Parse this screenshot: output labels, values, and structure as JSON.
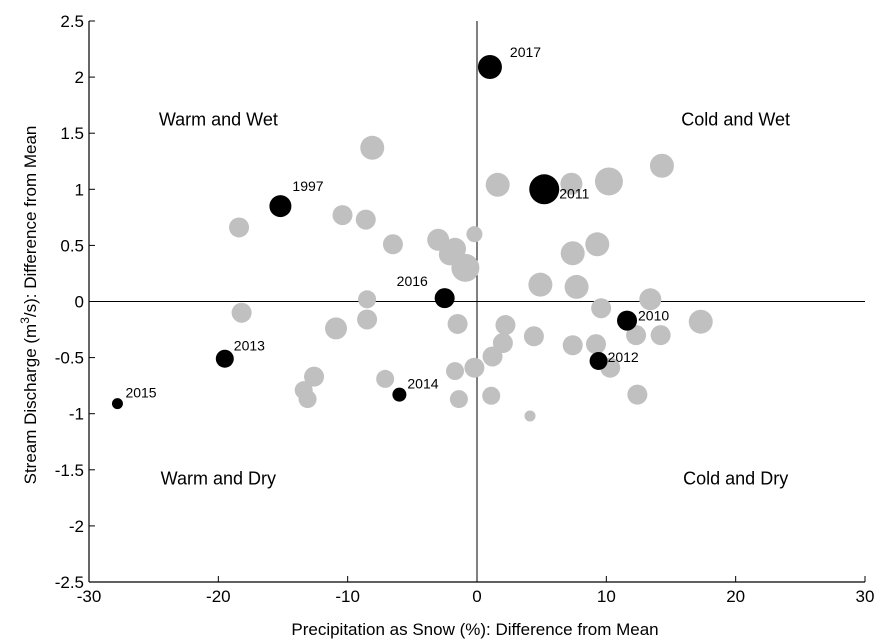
{
  "chart_data": {
    "type": "scatter",
    "xlabel": "Precipitation as Snow (%): Difference from Mean",
    "ylabel_pre": "Stream Discharge (m",
    "ylabel_sup": "3",
    "ylabel_post": "/s): Difference from Mean",
    "xlim": [
      -30,
      30
    ],
    "ylim": [
      -2.5,
      2.5
    ],
    "xticks": [
      -30,
      -20,
      -10,
      0,
      10,
      20,
      30
    ],
    "yticks": [
      -2.5,
      -2,
      -1.5,
      -1,
      -0.5,
      0,
      0.5,
      1,
      1.5,
      2,
      2.5
    ],
    "xtick_labels": [
      "-30",
      "-20",
      "-10",
      "0",
      "10",
      "20",
      "30"
    ],
    "ytick_labels": [
      "-2.5",
      "-2",
      "-1.5",
      "-1",
      "-0.5",
      "0",
      "0.5",
      "1",
      "1.5",
      "2",
      "2.5"
    ],
    "grid": false,
    "quadrant_labels": [
      {
        "text": "Warm and Wet",
        "x": -20,
        "y": 1.57
      },
      {
        "text": "Cold and Wet",
        "x": 20,
        "y": 1.57
      },
      {
        "text": "Warm and Dry",
        "x": -20,
        "y": -1.63
      },
      {
        "text": "Cold and Dry",
        "x": 20,
        "y": -1.63
      }
    ],
    "colors": {
      "highlight": "#000000",
      "other": "#c0c0c0"
    },
    "highlighted_points": [
      {
        "label": "2017",
        "x": 1.0,
        "y": 2.09,
        "size": 12
      },
      {
        "label": "2011",
        "x": 5.2,
        "y": 1.0,
        "size": 15
      },
      {
        "label": "1997",
        "x": -15.2,
        "y": 0.85,
        "size": 11
      },
      {
        "label": "2016",
        "x": -2.5,
        "y": 0.03,
        "size": 10
      },
      {
        "label": "2010",
        "x": 11.6,
        "y": -0.17,
        "size": 10
      },
      {
        "label": "2013",
        "x": -19.5,
        "y": -0.51,
        "size": 9
      },
      {
        "label": "2012",
        "x": 9.4,
        "y": -0.53,
        "size": 9
      },
      {
        "label": "2014",
        "x": -6.0,
        "y": -0.83,
        "size": 7
      },
      {
        "label": "2015",
        "x": -27.8,
        "y": -0.91,
        "size": 5.5
      }
    ],
    "other_points": [
      {
        "x": -8.1,
        "y": 1.37,
        "size": 12
      },
      {
        "x": 14.3,
        "y": 1.21,
        "size": 12
      },
      {
        "x": 1.6,
        "y": 1.04,
        "size": 12
      },
      {
        "x": 7.3,
        "y": 1.05,
        "size": 11
      },
      {
        "x": 10.2,
        "y": 1.07,
        "size": 14
      },
      {
        "x": -18.4,
        "y": 0.66,
        "size": 10
      },
      {
        "x": -10.4,
        "y": 0.77,
        "size": 10
      },
      {
        "x": -8.6,
        "y": 0.73,
        "size": 10
      },
      {
        "x": -6.5,
        "y": 0.51,
        "size": 10
      },
      {
        "x": -3.0,
        "y": 0.55,
        "size": 11
      },
      {
        "x": -1.7,
        "y": 0.47,
        "size": 11
      },
      {
        "x": -2.1,
        "y": 0.42,
        "size": 11
      },
      {
        "x": -0.2,
        "y": 0.6,
        "size": 8
      },
      {
        "x": -0.9,
        "y": 0.3,
        "size": 14
      },
      {
        "x": 9.3,
        "y": 0.51,
        "size": 12
      },
      {
        "x": 7.4,
        "y": 0.43,
        "size": 12
      },
      {
        "x": 4.9,
        "y": 0.15,
        "size": 12
      },
      {
        "x": 7.7,
        "y": 0.13,
        "size": 12
      },
      {
        "x": -8.5,
        "y": 0.02,
        "size": 9
      },
      {
        "x": 13.4,
        "y": 0.02,
        "size": 11
      },
      {
        "x": 9.6,
        "y": -0.06,
        "size": 10
      },
      {
        "x": -18.2,
        "y": -0.1,
        "size": 10
      },
      {
        "x": -8.5,
        "y": -0.16,
        "size": 10
      },
      {
        "x": 17.3,
        "y": -0.18,
        "size": 12
      },
      {
        "x": -10.9,
        "y": -0.24,
        "size": 11
      },
      {
        "x": -1.5,
        "y": -0.2,
        "size": 10
      },
      {
        "x": 2.2,
        "y": -0.21,
        "size": 10
      },
      {
        "x": 12.3,
        "y": -0.3,
        "size": 10
      },
      {
        "x": 14.2,
        "y": -0.3,
        "size": 10
      },
      {
        "x": 4.4,
        "y": -0.31,
        "size": 10
      },
      {
        "x": 7.4,
        "y": -0.39,
        "size": 10
      },
      {
        "x": 9.2,
        "y": -0.38,
        "size": 10
      },
      {
        "x": 2.0,
        "y": -0.37,
        "size": 10
      },
      {
        "x": 1.2,
        "y": -0.49,
        "size": 10
      },
      {
        "x": 10.3,
        "y": -0.59,
        "size": 10
      },
      {
        "x": -0.2,
        "y": -0.59,
        "size": 10
      },
      {
        "x": -1.7,
        "y": -0.62,
        "size": 9
      },
      {
        "x": -12.6,
        "y": -0.67,
        "size": 10
      },
      {
        "x": -7.1,
        "y": -0.69,
        "size": 9
      },
      {
        "x": -13.4,
        "y": -0.79,
        "size": 9
      },
      {
        "x": -13.1,
        "y": -0.87,
        "size": 9
      },
      {
        "x": -1.4,
        "y": -0.87,
        "size": 9
      },
      {
        "x": 1.1,
        "y": -0.84,
        "size": 9
      },
      {
        "x": 12.4,
        "y": -0.83,
        "size": 10
      },
      {
        "x": 4.1,
        "y": -1.02,
        "size": 5.5
      }
    ]
  }
}
